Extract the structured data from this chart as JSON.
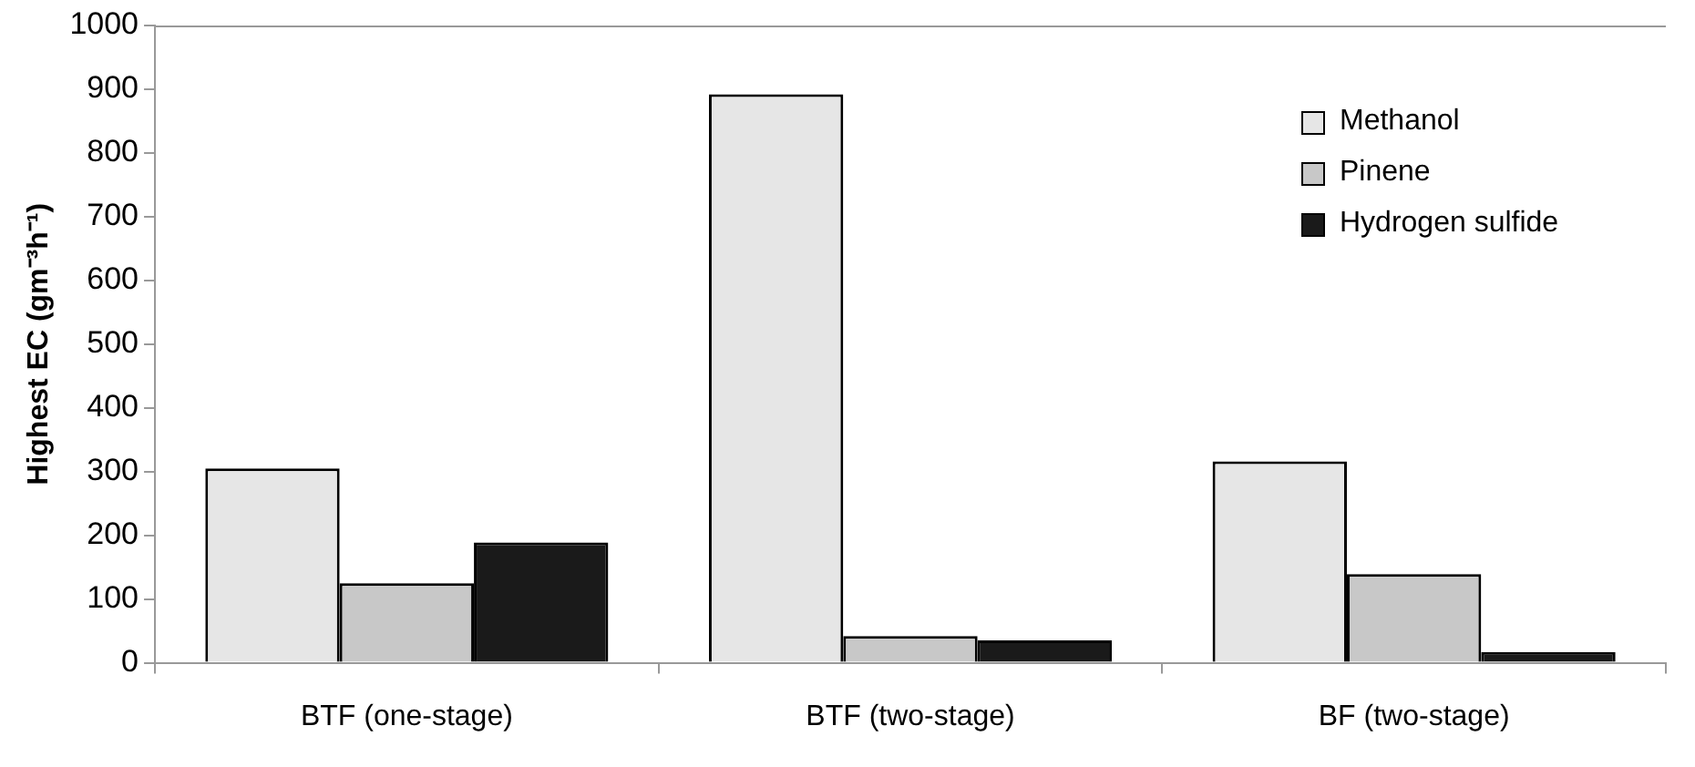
{
  "chart_data": {
    "type": "bar",
    "ylabel": "Highest EC (gm⁻³h⁻¹)",
    "categories": [
      "BTF (one-stage)",
      "BTF (two-stage)",
      "BF (two-stage)"
    ],
    "series": [
      {
        "name": "Methanol",
        "color": "#e6e6e6",
        "values": [
          305,
          892,
          316
        ]
      },
      {
        "name": "Pinene",
        "color": "#c8c8c8",
        "values": [
          125,
          42,
          139
        ]
      },
      {
        "name": "Hydrogen sulfide",
        "color": "#1a1a1a",
        "values": [
          189,
          35,
          17
        ]
      }
    ],
    "ylim": [
      0,
      1000
    ],
    "yticks": [
      0,
      100,
      200,
      300,
      400,
      500,
      600,
      700,
      800,
      900,
      1000
    ],
    "grid": false,
    "legend": "top right"
  }
}
